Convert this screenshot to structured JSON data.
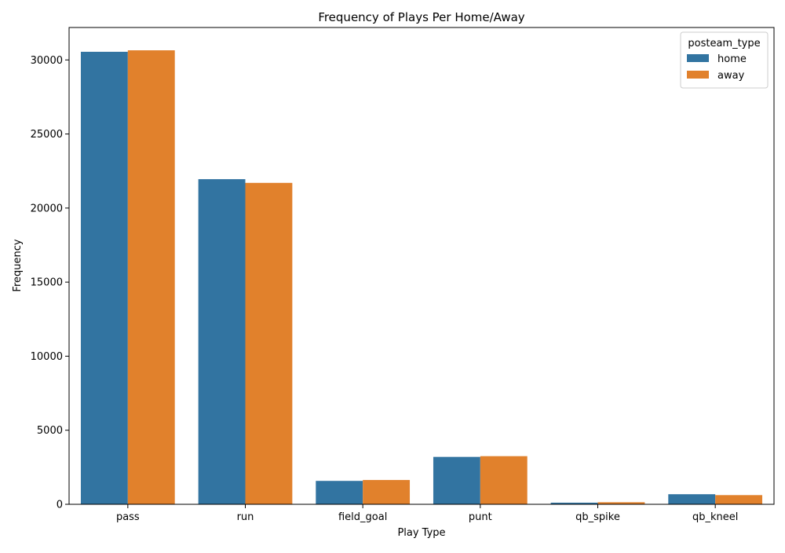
{
  "chart_data": {
    "type": "bar",
    "title": "Frequency of Plays Per Home/Away",
    "xlabel": "Play Type",
    "ylabel": "Frequency",
    "categories": [
      "pass",
      "run",
      "field_goal",
      "punt",
      "qb_spike",
      "qb_kneel"
    ],
    "series": [
      {
        "name": "home",
        "color": "#3274a1",
        "values": [
          30550,
          21950,
          1580,
          3200,
          110,
          680
        ]
      },
      {
        "name": "away",
        "color": "#e1812c",
        "values": [
          30650,
          21700,
          1640,
          3250,
          140,
          620
        ]
      }
    ],
    "ylim": [
      0,
      32190
    ],
    "yticks": [
      0,
      5000,
      10000,
      15000,
      20000,
      25000,
      30000
    ],
    "grid": false,
    "legend": {
      "title": "posteam_type",
      "placement": "top-right"
    }
  }
}
